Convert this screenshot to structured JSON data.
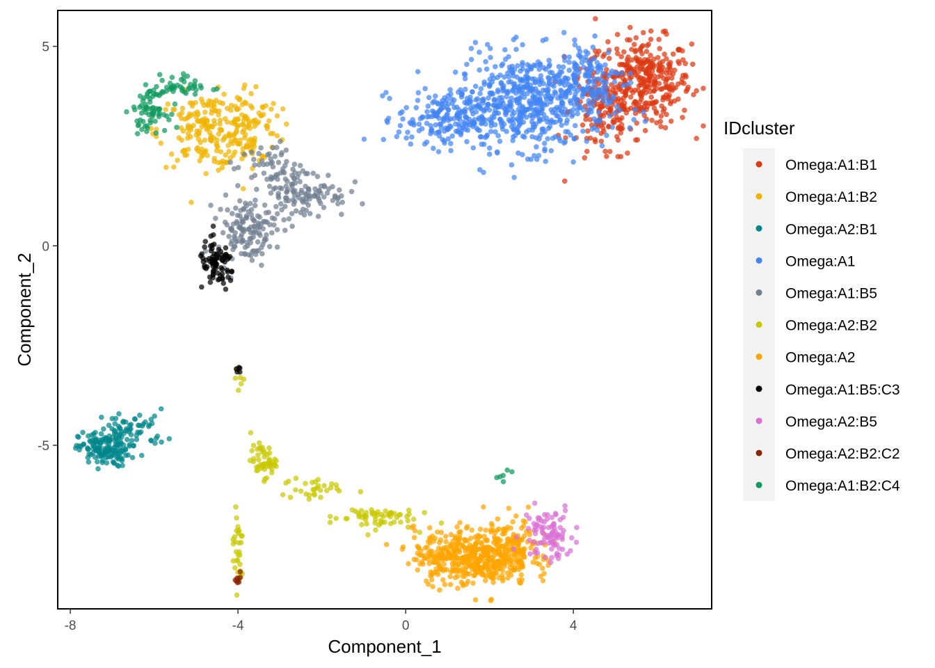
{
  "chart_data": {
    "type": "scatter",
    "xlabel": "Component_1",
    "ylabel": "Component_2",
    "xlim": [
      -8.3,
      7.3
    ],
    "ylim": [
      -9.1,
      5.9
    ],
    "x_ticks": [
      -8,
      -4,
      0,
      4
    ],
    "y_ticks": [
      5,
      0,
      -5
    ],
    "grid": false,
    "legend": {
      "title": "IDcluster",
      "placement": "right"
    },
    "series": [
      {
        "name": "Omega:A1:B1",
        "color": "#DC3912",
        "clusters": [
          {
            "cx": 5.7,
            "cy": 4.1,
            "sx": 0.55,
            "sy": 0.55,
            "n": 340
          },
          {
            "cx": 4.7,
            "cy": 3.4,
            "sx": 0.4,
            "sy": 0.7,
            "n": 130
          }
        ]
      },
      {
        "name": "Omega:A1:B2",
        "color": "#F0B400",
        "clusters": [
          {
            "cx": -4.8,
            "cy": 2.9,
            "sx": 0.55,
            "sy": 0.45,
            "n": 160
          },
          {
            "cx": -3.8,
            "cy": 3.0,
            "sx": 0.4,
            "sy": 0.55,
            "n": 110
          }
        ]
      },
      {
        "name": "Omega:A2:B1",
        "color": "#00868B",
        "clusters": [
          {
            "cx": -7.2,
            "cy": -5.1,
            "sx": 0.3,
            "sy": 0.22,
            "n": 150
          },
          {
            "cx": -6.5,
            "cy": -4.6,
            "sx": 0.4,
            "sy": 0.25,
            "n": 60
          }
        ]
      },
      {
        "name": "Omega:A1",
        "color": "#4285F4",
        "clusters": [
          {
            "cx": 3.0,
            "cy": 3.6,
            "sx": 0.9,
            "sy": 0.6,
            "n": 520
          },
          {
            "cx": 1.0,
            "cy": 3.2,
            "sx": 0.6,
            "sy": 0.35,
            "n": 200
          },
          {
            "cx": 4.3,
            "cy": 4.2,
            "sx": 0.5,
            "sy": 0.5,
            "n": 120
          }
        ]
      },
      {
        "name": "Omega:A1:B5",
        "color": "#708090",
        "clusters": [
          {
            "cx": -2.4,
            "cy": 1.3,
            "sx": 0.5,
            "sy": 0.3,
            "n": 110
          },
          {
            "cx": -3.8,
            "cy": 0.4,
            "sx": 0.35,
            "sy": 0.4,
            "n": 130
          },
          {
            "cx": -3.2,
            "cy": 2.0,
            "sx": 0.4,
            "sy": 0.3,
            "n": 50
          }
        ]
      },
      {
        "name": "Omega:A2:B2",
        "color": "#C8C800",
        "clusters": [
          {
            "cx": -3.4,
            "cy": -5.4,
            "sx": 0.15,
            "sy": 0.2,
            "n": 50
          },
          {
            "cx": -2.2,
            "cy": -6.1,
            "sx": 0.4,
            "sy": 0.15,
            "n": 30
          },
          {
            "cx": -0.8,
            "cy": -6.8,
            "sx": 0.5,
            "sy": 0.15,
            "n": 60
          },
          {
            "cx": -4.0,
            "cy": -7.6,
            "sx": 0.08,
            "sy": 0.5,
            "n": 30
          },
          {
            "cx": -3.95,
            "cy": -3.3,
            "sx": 0.05,
            "sy": 0.15,
            "n": 6
          }
        ]
      },
      {
        "name": "Omega:A2",
        "color": "#FFA500",
        "clusters": [
          {
            "cx": 1.6,
            "cy": -7.8,
            "sx": 0.7,
            "sy": 0.35,
            "n": 480
          },
          {
            "cx": 2.6,
            "cy": -7.5,
            "sx": 0.4,
            "sy": 0.35,
            "n": 90
          }
        ]
      },
      {
        "name": "Omega:A1:B5:C3",
        "color": "#000000",
        "clusters": [
          {
            "cx": -4.5,
            "cy": -0.5,
            "sx": 0.22,
            "sy": 0.3,
            "n": 80
          },
          {
            "cx": -4.0,
            "cy": -3.15,
            "sx": 0.05,
            "sy": 0.08,
            "n": 5
          }
        ]
      },
      {
        "name": "Omega:A2:B5",
        "color": "#DA70D6",
        "clusters": [
          {
            "cx": 3.4,
            "cy": -7.2,
            "sx": 0.3,
            "sy": 0.35,
            "n": 90
          }
        ]
      },
      {
        "name": "Omega:A2:B2:C2",
        "color": "#8B2500",
        "clusters": [
          {
            "cx": -4.0,
            "cy": -8.3,
            "sx": 0.05,
            "sy": 0.1,
            "n": 10
          }
        ]
      },
      {
        "name": "Omega:A1:B2:C4",
        "color": "#109A5E",
        "clusters": [
          {
            "cx": -6.1,
            "cy": 3.4,
            "sx": 0.2,
            "sy": 0.25,
            "n": 70
          },
          {
            "cx": -5.3,
            "cy": 4.0,
            "sx": 0.35,
            "sy": 0.15,
            "n": 40
          },
          {
            "cx": 2.3,
            "cy": -5.8,
            "sx": 0.1,
            "sy": 0.1,
            "n": 6
          }
        ]
      }
    ]
  }
}
